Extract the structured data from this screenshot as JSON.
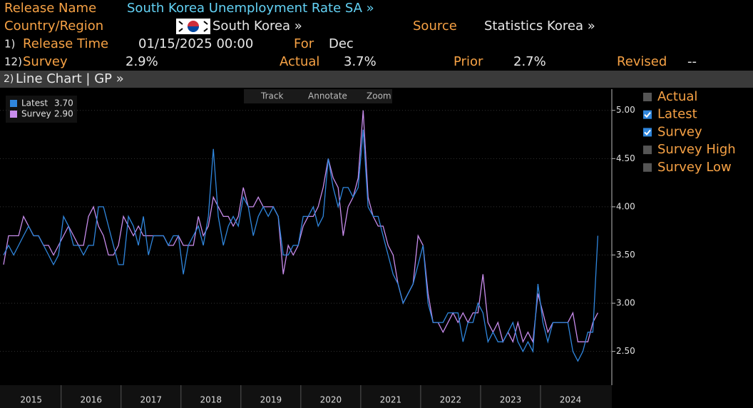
{
  "header": {
    "release_name_label": "Release Name",
    "release_name": "South Korea Unemployment Rate SA »",
    "country_label": "Country/Region",
    "country": "South Korea »",
    "source_label": "Source",
    "source": "Statistics Korea »",
    "release_time_num": "1)",
    "release_time_label": "Release Time",
    "release_time": "01/15/2025 00:00",
    "for_label": "For",
    "for_value": "Dec",
    "survey_num": "12)",
    "survey_label": "Survey",
    "survey": "2.9%",
    "actual_label": "Actual",
    "actual": "3.7%",
    "prior_label": "Prior",
    "prior": "2.7%",
    "revised_label": "Revised",
    "revised": "--"
  },
  "toolbar": {
    "menu_num": "2)",
    "title": "Line Chart | GP »",
    "tools": [
      "Track",
      "Annotate",
      "Zoom"
    ]
  },
  "chart_data": {
    "type": "line",
    "x": [
      2015,
      2015.083,
      2015.167,
      2015.25,
      2015.333,
      2015.417,
      2015.5,
      2015.583,
      2015.667,
      2015.75,
      2015.833,
      2015.917,
      2016,
      2016.083,
      2016.167,
      2016.25,
      2016.333,
      2016.417,
      2016.5,
      2016.583,
      2016.667,
      2016.75,
      2016.833,
      2016.917,
      2017,
      2017.083,
      2017.167,
      2017.25,
      2017.333,
      2017.417,
      2017.5,
      2017.583,
      2017.667,
      2017.75,
      2017.833,
      2017.917,
      2018,
      2018.083,
      2018.167,
      2018.25,
      2018.333,
      2018.417,
      2018.5,
      2018.583,
      2018.667,
      2018.75,
      2018.833,
      2018.917,
      2019,
      2019.083,
      2019.167,
      2019.25,
      2019.333,
      2019.417,
      2019.5,
      2019.583,
      2019.667,
      2019.75,
      2019.833,
      2019.917,
      2020,
      2020.083,
      2020.167,
      2020.25,
      2020.333,
      2020.417,
      2020.5,
      2020.583,
      2020.667,
      2020.75,
      2020.833,
      2020.917,
      2021,
      2021.083,
      2021.167,
      2021.25,
      2021.333,
      2021.417,
      2021.5,
      2021.583,
      2021.667,
      2021.75,
      2021.833,
      2021.917,
      2022,
      2022.083,
      2022.167,
      2022.25,
      2022.333,
      2022.417,
      2022.5,
      2022.583,
      2022.667,
      2022.75,
      2022.833,
      2022.917,
      2023,
      2023.083,
      2023.167,
      2023.25,
      2023.333,
      2023.417,
      2023.5,
      2023.583,
      2023.667,
      2023.75,
      2023.833,
      2023.917,
      2024,
      2024.083,
      2024.167,
      2024.25,
      2024.333,
      2024.417,
      2024.5,
      2024.583,
      2024.667,
      2024.75,
      2024.833,
      2024.917
    ],
    "series": [
      {
        "name": "Latest",
        "last_label": "3.70",
        "color": "#2f86dd",
        "values": [
          3.5,
          3.6,
          3.5,
          3.6,
          3.7,
          3.8,
          3.7,
          3.7,
          3.6,
          3.5,
          3.4,
          3.5,
          3.9,
          3.8,
          3.6,
          3.6,
          3.5,
          3.6,
          3.6,
          4.0,
          4.0,
          3.8,
          3.6,
          3.4,
          3.4,
          3.9,
          3.8,
          3.6,
          3.9,
          3.5,
          3.7,
          3.7,
          3.7,
          3.6,
          3.7,
          3.7,
          3.3,
          3.6,
          3.7,
          3.8,
          3.6,
          3.9,
          4.6,
          3.9,
          3.6,
          3.8,
          3.9,
          3.8,
          4.1,
          4.0,
          3.7,
          3.9,
          4.0,
          3.9,
          4.0,
          3.9,
          3.5,
          3.5,
          3.6,
          3.6,
          3.9,
          3.9,
          4.0,
          3.8,
          3.9,
          4.5,
          4.2,
          4.0,
          4.2,
          4.2,
          4.1,
          4.2,
          4.8,
          4.0,
          3.9,
          3.9,
          3.7,
          3.5,
          3.3,
          3.2,
          3.0,
          3.1,
          3.2,
          3.4,
          3.6,
          3.0,
          2.8,
          2.8,
          2.8,
          2.9,
          2.9,
          2.9,
          2.6,
          2.8,
          2.8,
          3.0,
          2.9,
          2.6,
          2.7,
          2.6,
          2.6,
          2.7,
          2.8,
          2.6,
          2.5,
          2.6,
          2.5,
          3.2,
          2.8,
          2.6,
          2.8,
          2.8,
          2.8,
          2.8,
          2.5,
          2.4,
          2.5,
          2.7,
          2.7,
          3.7
        ]
      },
      {
        "name": "Survey",
        "last_label": "2.90",
        "color": "#c88cec",
        "values": [
          3.4,
          3.7,
          3.7,
          3.7,
          3.9,
          3.8,
          3.7,
          3.7,
          3.6,
          3.6,
          3.5,
          3.6,
          3.7,
          3.8,
          3.7,
          3.6,
          3.6,
          3.9,
          4.0,
          3.8,
          3.7,
          3.5,
          3.5,
          3.6,
          3.9,
          3.8,
          3.7,
          3.8,
          3.7,
          3.7,
          3.7,
          3.7,
          3.7,
          3.6,
          3.6,
          3.7,
          3.6,
          3.6,
          3.6,
          3.9,
          3.7,
          3.8,
          4.1,
          4.0,
          3.9,
          3.9,
          3.8,
          3.9,
          4.2,
          4.0,
          4.0,
          4.1,
          4.0,
          4.0,
          4.0,
          3.9,
          3.3,
          3.6,
          3.5,
          3.6,
          3.8,
          3.9,
          3.9,
          4.0,
          4.2,
          4.5,
          4.3,
          4.2,
          3.7,
          4.0,
          4.1,
          4.3,
          5.0,
          4.1,
          3.9,
          3.8,
          3.8,
          3.6,
          3.5,
          3.2,
          3.0,
          3.1,
          3.2,
          3.7,
          3.6,
          3.1,
          2.8,
          2.8,
          2.7,
          2.8,
          2.9,
          2.8,
          2.9,
          2.8,
          2.9,
          2.9,
          3.3,
          2.8,
          2.7,
          2.8,
          2.6,
          2.7,
          2.6,
          2.8,
          2.6,
          2.7,
          2.6,
          3.1,
          2.9,
          2.7,
          2.8,
          2.8,
          2.8,
          2.8,
          2.9,
          2.6,
          2.6,
          2.6,
          2.8,
          2.9
        ]
      }
    ],
    "xlim": [
      2014.94,
      2025.15
    ],
    "xticks": [
      {
        "value": 2015.46,
        "label": "2015"
      },
      {
        "value": 2016.46,
        "label": "2016"
      },
      {
        "value": 2017.46,
        "label": "2017"
      },
      {
        "value": 2018.46,
        "label": "2018"
      },
      {
        "value": 2019.46,
        "label": "2019"
      },
      {
        "value": 2020.46,
        "label": "2020"
      },
      {
        "value": 2021.46,
        "label": "2021"
      },
      {
        "value": 2022.46,
        "label": "2022"
      },
      {
        "value": 2023.46,
        "label": "2023"
      },
      {
        "value": 2024.46,
        "label": "2024"
      }
    ],
    "ylim": [
      2.15,
      5.22
    ],
    "yticks": [
      {
        "value": 2.5,
        "label": "2.50"
      },
      {
        "value": 3,
        "label": "3.00"
      },
      {
        "value": 3.5,
        "label": "3.50"
      },
      {
        "value": 4,
        "label": "4.00"
      },
      {
        "value": 4.5,
        "label": "4.50"
      },
      {
        "value": 5,
        "label": "5.00"
      }
    ],
    "grid": true,
    "toggles": [
      {
        "label": "Actual",
        "checked": false
      },
      {
        "label": "Latest",
        "checked": true
      },
      {
        "label": "Survey",
        "checked": true
      },
      {
        "label": "Survey High",
        "checked": false
      },
      {
        "label": "Survey Low",
        "checked": false
      }
    ]
  }
}
